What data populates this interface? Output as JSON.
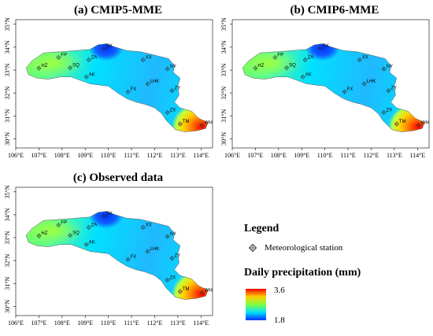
{
  "panels": [
    {
      "id": "a",
      "title": "(a) CMIP5-MME"
    },
    {
      "id": "b",
      "title": "(b) CMIP6-MME"
    },
    {
      "id": "c",
      "title": "(c) Observed data"
    }
  ],
  "axes": {
    "lon_labels": [
      "106°E",
      "107°E",
      "108°E",
      "109°E",
      "110°E",
      "111°E",
      "112°E",
      "113°E",
      "114°E"
    ],
    "lat_labels": [
      "30°N",
      "31°N",
      "32°N",
      "33°N",
      "34°N",
      "35°N"
    ]
  },
  "stations": [
    {
      "code": "HZ",
      "lon": 107.0,
      "lat": 33.08
    },
    {
      "code": "FP",
      "lon": 107.85,
      "lat": 33.55
    },
    {
      "code": "SQ",
      "lon": 108.35,
      "lat": 33.1
    },
    {
      "code": "ZA",
      "lon": 109.15,
      "lat": 33.45
    },
    {
      "code": "AK",
      "lon": 109.05,
      "lat": 32.7
    },
    {
      "code": "SX",
      "lon": 109.8,
      "lat": 33.95
    },
    {
      "code": "XX",
      "lon": 111.5,
      "lat": 33.45
    },
    {
      "code": "NY",
      "lon": 112.55,
      "lat": 33.05
    },
    {
      "code": "FX",
      "lon": 110.85,
      "lat": 32.05
    },
    {
      "code": "LHK",
      "lon": 111.7,
      "lat": 32.4
    },
    {
      "code": "ZY",
      "lon": 112.75,
      "lat": 32.1
    },
    {
      "code": "ZX",
      "lon": 112.55,
      "lat": 31.15
    },
    {
      "code": "TM",
      "lon": 113.1,
      "lat": 30.65
    },
    {
      "code": "WH",
      "lon": 114.05,
      "lat": 30.6
    }
  ],
  "legend": {
    "title": "Legend",
    "station_label": "Meteorological station",
    "precip_title": "Daily precipitation (mm)",
    "max": "3.6",
    "min": "1.8"
  },
  "colors": {
    "high": "#ff0000",
    "upper": "#ffd000",
    "mid": "#80ff40",
    "lower": "#00e0ff",
    "low": "#0030ff"
  }
}
